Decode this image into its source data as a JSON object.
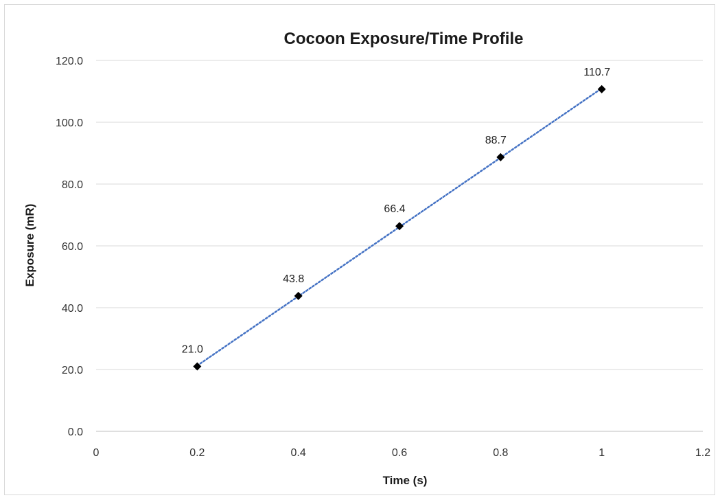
{
  "chart_data": {
    "type": "scatter",
    "title": "Cocoon Exposure/Time Profile",
    "xlabel": "Time (s)",
    "ylabel": "Exposure (mR)",
    "xlim": [
      0,
      1.2
    ],
    "ylim": [
      0,
      120
    ],
    "x_ticks": [
      "0",
      "0.2",
      "0.4",
      "0.6",
      "0.8",
      "1",
      "1.2"
    ],
    "y_ticks": [
      "0.0",
      "20.0",
      "40.0",
      "60.0",
      "80.0",
      "100.0",
      "120.0"
    ],
    "grid": "horizontal",
    "legend": "none",
    "series": [
      {
        "x": [
          0.2,
          0.4,
          0.6,
          0.8,
          1.0
        ],
        "y": [
          21.0,
          43.8,
          66.4,
          88.7,
          110.7
        ],
        "labels": [
          "21.0",
          "43.8",
          "66.4",
          "88.7",
          "110.7"
        ],
        "marker": "diamond",
        "color": "#000000"
      }
    ],
    "trendline": {
      "type": "linear",
      "style": "dotted",
      "color": "#4472c4"
    }
  }
}
